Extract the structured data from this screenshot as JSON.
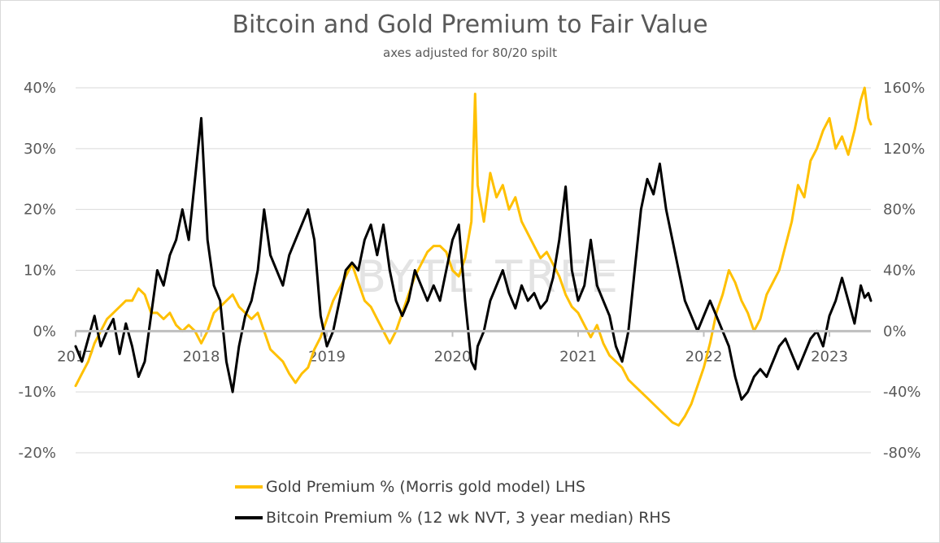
{
  "chart_data": {
    "type": "line",
    "title": "Bitcoin and Gold Premium to Fair Value",
    "subtitle": "axes adjusted for 80/20 spilt",
    "watermark": "BYTE TREE",
    "xlabels": [
      "2017",
      "2018",
      "2019",
      "2020",
      "2021",
      "2022",
      "2023"
    ],
    "xlim": [
      2017.0,
      2023.33
    ],
    "y_left": {
      "range": [
        -20,
        40
      ],
      "ticks": [
        "-20%",
        "-10%",
        "0%",
        "10%",
        "20%",
        "30%",
        "40%"
      ]
    },
    "y_right": {
      "range": [
        -80,
        160
      ],
      "ticks": [
        "-80%",
        "-40%",
        "0%",
        "40%",
        "80%",
        "120%",
        "160%"
      ]
    },
    "colors": {
      "gold": "#FFC000",
      "bitcoin": "#000000",
      "zero_line": "#bfbfbf",
      "grid": "#d9d9d9"
    },
    "series": [
      {
        "name": "Gold Premium % (Morris gold model) LHS",
        "axis": "left",
        "color": "#FFC000",
        "points": [
          [
            2017.0,
            -9
          ],
          [
            2017.05,
            -7
          ],
          [
            2017.1,
            -5
          ],
          [
            2017.15,
            -2
          ],
          [
            2017.2,
            0
          ],
          [
            2017.25,
            2
          ],
          [
            2017.3,
            3
          ],
          [
            2017.35,
            4
          ],
          [
            2017.4,
            5
          ],
          [
            2017.45,
            5
          ],
          [
            2017.5,
            7
          ],
          [
            2017.55,
            6
          ],
          [
            2017.6,
            3
          ],
          [
            2017.65,
            3
          ],
          [
            2017.7,
            2
          ],
          [
            2017.75,
            3
          ],
          [
            2017.8,
            1
          ],
          [
            2017.85,
            0
          ],
          [
            2017.9,
            1
          ],
          [
            2017.95,
            0
          ],
          [
            2018.0,
            -2
          ],
          [
            2018.05,
            0
          ],
          [
            2018.1,
            3
          ],
          [
            2018.15,
            4
          ],
          [
            2018.2,
            5
          ],
          [
            2018.25,
            6
          ],
          [
            2018.3,
            4
          ],
          [
            2018.35,
            3
          ],
          [
            2018.4,
            2
          ],
          [
            2018.45,
            3
          ],
          [
            2018.5,
            0
          ],
          [
            2018.55,
            -3
          ],
          [
            2018.6,
            -4
          ],
          [
            2018.65,
            -5
          ],
          [
            2018.7,
            -7
          ],
          [
            2018.75,
            -8.5
          ],
          [
            2018.8,
            -7
          ],
          [
            2018.85,
            -6
          ],
          [
            2018.9,
            -3
          ],
          [
            2018.95,
            -1
          ],
          [
            2019.0,
            2
          ],
          [
            2019.05,
            5
          ],
          [
            2019.1,
            7
          ],
          [
            2019.15,
            9
          ],
          [
            2019.2,
            11
          ],
          [
            2019.25,
            8
          ],
          [
            2019.3,
            5
          ],
          [
            2019.35,
            4
          ],
          [
            2019.4,
            2
          ],
          [
            2019.45,
            0
          ],
          [
            2019.5,
            -2
          ],
          [
            2019.55,
            0
          ],
          [
            2019.6,
            3
          ],
          [
            2019.65,
            6
          ],
          [
            2019.7,
            9
          ],
          [
            2019.75,
            11
          ],
          [
            2019.8,
            13
          ],
          [
            2019.85,
            14
          ],
          [
            2019.9,
            14
          ],
          [
            2019.95,
            13
          ],
          [
            2020.0,
            10
          ],
          [
            2020.05,
            9
          ],
          [
            2020.1,
            12
          ],
          [
            2020.15,
            18
          ],
          [
            2020.18,
            39
          ],
          [
            2020.2,
            24
          ],
          [
            2020.25,
            18
          ],
          [
            2020.3,
            26
          ],
          [
            2020.35,
            22
          ],
          [
            2020.4,
            24
          ],
          [
            2020.45,
            20
          ],
          [
            2020.5,
            22
          ],
          [
            2020.55,
            18
          ],
          [
            2020.6,
            16
          ],
          [
            2020.65,
            14
          ],
          [
            2020.7,
            12
          ],
          [
            2020.75,
            13
          ],
          [
            2020.8,
            11
          ],
          [
            2020.85,
            9
          ],
          [
            2020.9,
            6
          ],
          [
            2020.95,
            4
          ],
          [
            2021.0,
            3
          ],
          [
            2021.05,
            1
          ],
          [
            2021.1,
            -1
          ],
          [
            2021.15,
            1
          ],
          [
            2021.2,
            -2
          ],
          [
            2021.25,
            -4
          ],
          [
            2021.3,
            -5
          ],
          [
            2021.35,
            -6
          ],
          [
            2021.4,
            -8
          ],
          [
            2021.45,
            -9
          ],
          [
            2021.5,
            -10
          ],
          [
            2021.55,
            -11
          ],
          [
            2021.6,
            -12
          ],
          [
            2021.65,
            -13
          ],
          [
            2021.7,
            -14
          ],
          [
            2021.75,
            -15
          ],
          [
            2021.8,
            -15.5
          ],
          [
            2021.85,
            -14
          ],
          [
            2021.9,
            -12
          ],
          [
            2021.95,
            -9
          ],
          [
            2022.0,
            -6
          ],
          [
            2022.05,
            -2
          ],
          [
            2022.1,
            3
          ],
          [
            2022.15,
            6
          ],
          [
            2022.2,
            10
          ],
          [
            2022.25,
            8
          ],
          [
            2022.3,
            5
          ],
          [
            2022.35,
            3
          ],
          [
            2022.4,
            0
          ],
          [
            2022.45,
            2
          ],
          [
            2022.5,
            6
          ],
          [
            2022.55,
            8
          ],
          [
            2022.6,
            10
          ],
          [
            2022.65,
            14
          ],
          [
            2022.7,
            18
          ],
          [
            2022.75,
            24
          ],
          [
            2022.8,
            22
          ],
          [
            2022.85,
            28
          ],
          [
            2022.9,
            30
          ],
          [
            2022.95,
            33
          ],
          [
            2023.0,
            35
          ],
          [
            2023.05,
            30
          ],
          [
            2023.1,
            32
          ],
          [
            2023.15,
            29
          ],
          [
            2023.2,
            33
          ],
          [
            2023.25,
            38
          ],
          [
            2023.28,
            40
          ],
          [
            2023.31,
            35
          ],
          [
            2023.33,
            34
          ]
        ]
      },
      {
        "name": "Bitcoin Premium % (12 wk NVT, 3 year median) RHS",
        "axis": "right",
        "color": "#000000",
        "points": [
          [
            2017.0,
            -10
          ],
          [
            2017.05,
            -20
          ],
          [
            2017.1,
            -5
          ],
          [
            2017.15,
            10
          ],
          [
            2017.2,
            -10
          ],
          [
            2017.25,
            0
          ],
          [
            2017.3,
            8
          ],
          [
            2017.35,
            -15
          ],
          [
            2017.4,
            5
          ],
          [
            2017.45,
            -10
          ],
          [
            2017.5,
            -30
          ],
          [
            2017.55,
            -20
          ],
          [
            2017.6,
            10
          ],
          [
            2017.65,
            40
          ],
          [
            2017.7,
            30
          ],
          [
            2017.75,
            50
          ],
          [
            2017.8,
            60
          ],
          [
            2017.85,
            80
          ],
          [
            2017.9,
            60
          ],
          [
            2017.95,
            100
          ],
          [
            2018.0,
            140
          ],
          [
            2018.05,
            60
          ],
          [
            2018.1,
            30
          ],
          [
            2018.15,
            20
          ],
          [
            2018.2,
            -20
          ],
          [
            2018.25,
            -40
          ],
          [
            2018.3,
            -10
          ],
          [
            2018.35,
            10
          ],
          [
            2018.4,
            20
          ],
          [
            2018.45,
            40
          ],
          [
            2018.5,
            80
          ],
          [
            2018.55,
            50
          ],
          [
            2018.6,
            40
          ],
          [
            2018.65,
            30
          ],
          [
            2018.7,
            50
          ],
          [
            2018.75,
            60
          ],
          [
            2018.8,
            70
          ],
          [
            2018.85,
            80
          ],
          [
            2018.9,
            60
          ],
          [
            2018.95,
            10
          ],
          [
            2019.0,
            -10
          ],
          [
            2019.05,
            0
          ],
          [
            2019.1,
            20
          ],
          [
            2019.15,
            40
          ],
          [
            2019.2,
            45
          ],
          [
            2019.25,
            40
          ],
          [
            2019.3,
            60
          ],
          [
            2019.35,
            70
          ],
          [
            2019.4,
            50
          ],
          [
            2019.45,
            70
          ],
          [
            2019.5,
            40
          ],
          [
            2019.55,
            20
          ],
          [
            2019.6,
            10
          ],
          [
            2019.65,
            20
          ],
          [
            2019.7,
            40
          ],
          [
            2019.75,
            30
          ],
          [
            2019.8,
            20
          ],
          [
            2019.85,
            30
          ],
          [
            2019.9,
            20
          ],
          [
            2019.95,
            40
          ],
          [
            2020.0,
            60
          ],
          [
            2020.05,
            70
          ],
          [
            2020.1,
            20
          ],
          [
            2020.15,
            -20
          ],
          [
            2020.18,
            -25
          ],
          [
            2020.2,
            -10
          ],
          [
            2020.25,
            0
          ],
          [
            2020.3,
            20
          ],
          [
            2020.35,
            30
          ],
          [
            2020.4,
            40
          ],
          [
            2020.45,
            25
          ],
          [
            2020.5,
            15
          ],
          [
            2020.55,
            30
          ],
          [
            2020.6,
            20
          ],
          [
            2020.65,
            25
          ],
          [
            2020.7,
            15
          ],
          [
            2020.75,
            20
          ],
          [
            2020.8,
            35
          ],
          [
            2020.85,
            60
          ],
          [
            2020.9,
            95
          ],
          [
            2020.95,
            40
          ],
          [
            2021.0,
            20
          ],
          [
            2021.05,
            30
          ],
          [
            2021.1,
            60
          ],
          [
            2021.15,
            30
          ],
          [
            2021.2,
            20
          ],
          [
            2021.25,
            10
          ],
          [
            2021.3,
            -10
          ],
          [
            2021.35,
            -20
          ],
          [
            2021.4,
            0
          ],
          [
            2021.45,
            40
          ],
          [
            2021.5,
            80
          ],
          [
            2021.55,
            100
          ],
          [
            2021.6,
            90
          ],
          [
            2021.65,
            110
          ],
          [
            2021.7,
            80
          ],
          [
            2021.75,
            60
          ],
          [
            2021.8,
            40
          ],
          [
            2021.85,
            20
          ],
          [
            2021.9,
            10
          ],
          [
            2021.95,
            0
          ],
          [
            2022.0,
            10
          ],
          [
            2022.05,
            20
          ],
          [
            2022.1,
            10
          ],
          [
            2022.15,
            0
          ],
          [
            2022.2,
            -10
          ],
          [
            2022.25,
            -30
          ],
          [
            2022.3,
            -45
          ],
          [
            2022.35,
            -40
          ],
          [
            2022.4,
            -30
          ],
          [
            2022.45,
            -25
          ],
          [
            2022.5,
            -30
          ],
          [
            2022.55,
            -20
          ],
          [
            2022.6,
            -10
          ],
          [
            2022.65,
            -5
          ],
          [
            2022.7,
            -15
          ],
          [
            2022.75,
            -25
          ],
          [
            2022.8,
            -15
          ],
          [
            2022.85,
            -5
          ],
          [
            2022.9,
            0
          ],
          [
            2022.95,
            -10
          ],
          [
            2023.0,
            10
          ],
          [
            2023.05,
            20
          ],
          [
            2023.1,
            35
          ],
          [
            2023.15,
            20
          ],
          [
            2023.2,
            5
          ],
          [
            2023.25,
            30
          ],
          [
            2023.28,
            22
          ],
          [
            2023.31,
            25
          ],
          [
            2023.33,
            20
          ]
        ]
      }
    ]
  },
  "legend": {
    "gold_label": "Gold Premium % (Morris gold model) LHS",
    "bitcoin_label": "Bitcoin Premium % (12 wk NVT, 3 year median) RHS"
  }
}
